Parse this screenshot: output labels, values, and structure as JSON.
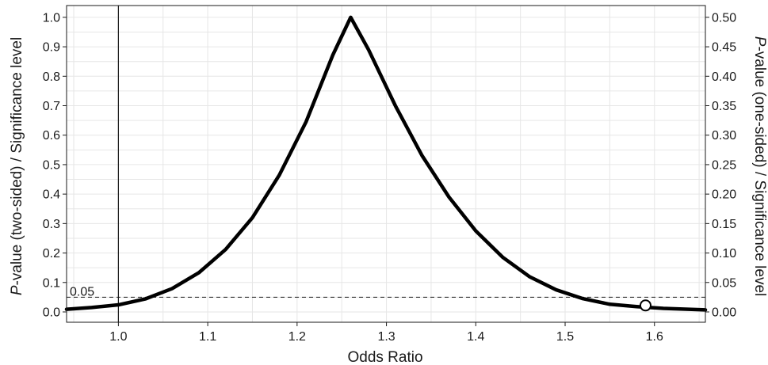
{
  "chart_data": {
    "type": "line",
    "xlabel": "Odds Ratio",
    "ylabel_left_italic": "P",
    "ylabel_left_rest": "-value (two-sided) / Significance level",
    "ylabel_right_italic": "P",
    "ylabel_right_rest": "-value (one-sided) / Significance level",
    "xlim": [
      0.942,
      1.657
    ],
    "ylim": [
      -0.035,
      1.04
    ],
    "x_ticks": [
      1.0,
      1.1,
      1.2,
      1.3,
      1.4,
      1.5,
      1.6
    ],
    "x_tick_labels": [
      "1.0",
      "1.1",
      "1.2",
      "1.3",
      "1.4",
      "1.5",
      "1.6"
    ],
    "y_left_ticks": [
      0.0,
      0.1,
      0.2,
      0.3,
      0.4,
      0.5,
      0.6,
      0.7,
      0.8,
      0.9,
      1.0
    ],
    "y_left_tick_labels": [
      "0.0",
      "0.1",
      "0.2",
      "0.3",
      "0.4",
      "0.5",
      "0.6",
      "0.7",
      "0.8",
      "0.9",
      "1.0"
    ],
    "y_right_tick_labels": [
      "0.00",
      "0.05",
      "0.10",
      "0.15",
      "0.20",
      "0.25",
      "0.30",
      "0.35",
      "0.40",
      "0.45",
      "0.50"
    ],
    "grid": true,
    "reference_vertical_x": 1.0,
    "reference_horizontal": {
      "y": 0.05,
      "label": "0.05",
      "style": "dashed"
    },
    "series": [
      {
        "x": [
          0.942,
          0.97,
          1.0,
          1.03,
          1.06,
          1.09,
          1.12,
          1.15,
          1.18,
          1.21,
          1.24,
          1.26,
          1.28,
          1.31,
          1.34,
          1.37,
          1.4,
          1.43,
          1.46,
          1.49,
          1.52,
          1.55,
          1.58,
          1.61,
          1.657
        ],
        "y": [
          0.009,
          0.015,
          0.024,
          0.044,
          0.079,
          0.133,
          0.212,
          0.32,
          0.464,
          0.645,
          0.872,
          1.0,
          0.89,
          0.7,
          0.53,
          0.39,
          0.275,
          0.186,
          0.12,
          0.075,
          0.045,
          0.026,
          0.018,
          0.012,
          0.007
        ]
      }
    ],
    "marker_point": {
      "x": 1.59,
      "y": 0.022
    }
  }
}
